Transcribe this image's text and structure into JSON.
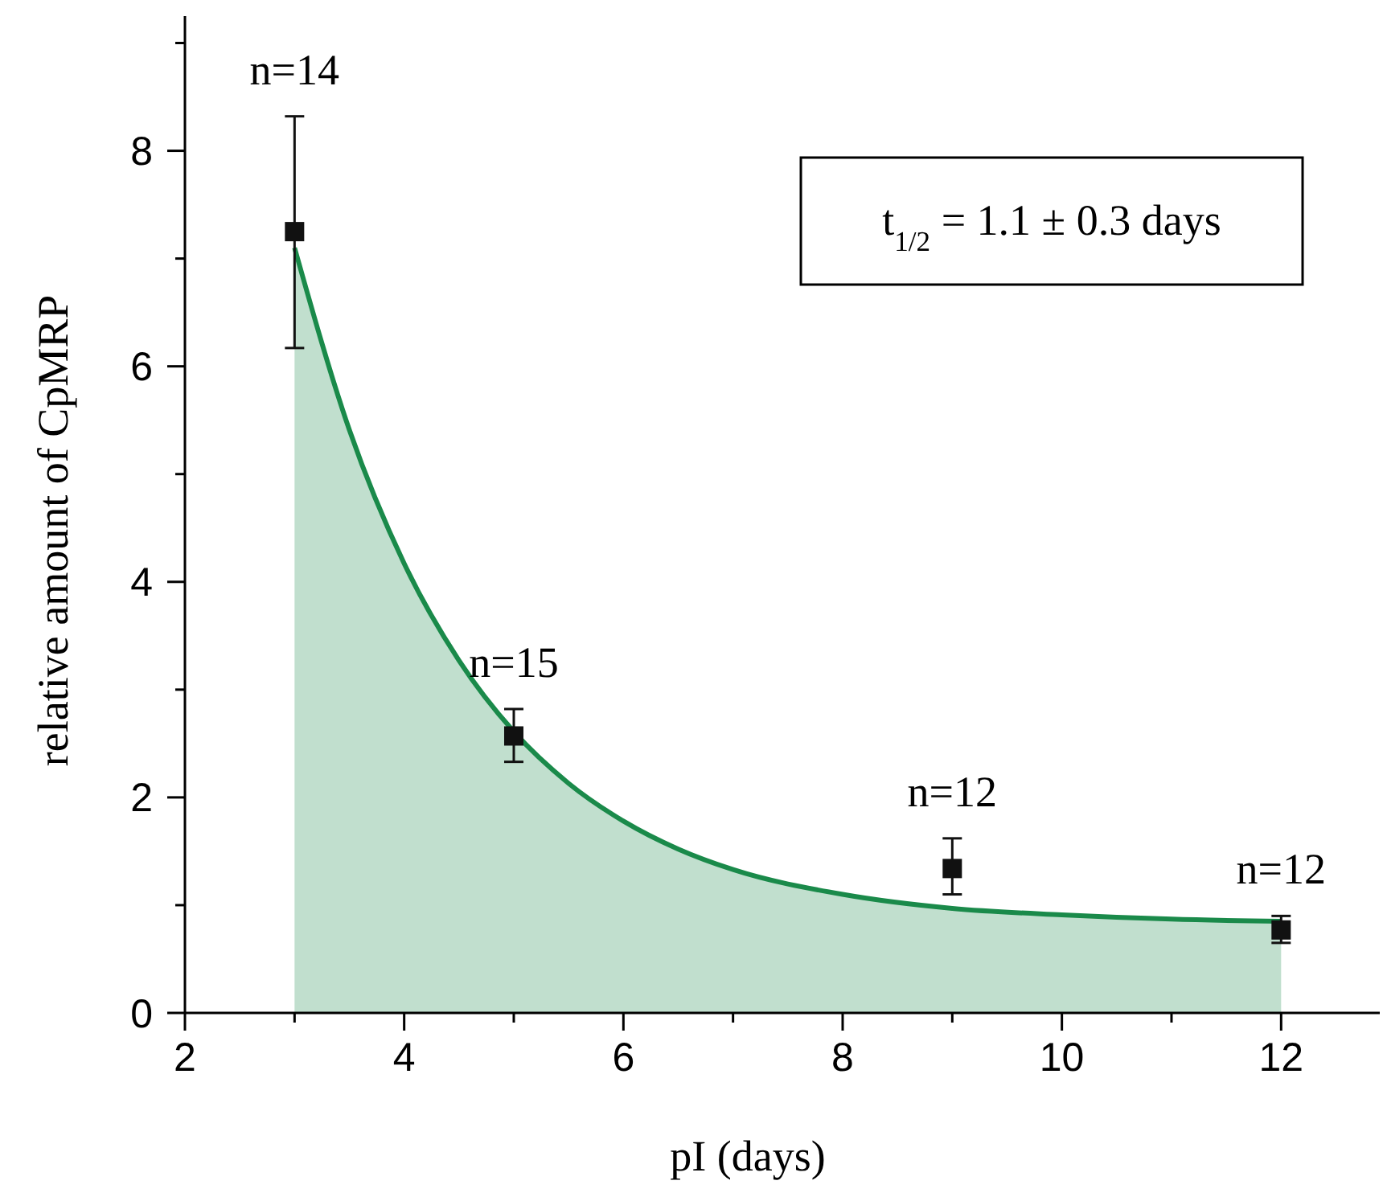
{
  "chart_data": {
    "type": "scatter",
    "xlabel": "pI (days)",
    "ylabel": "relative amount of CpMRP",
    "xlim": [
      2,
      12.9
    ],
    "ylim": [
      0,
      9.25
    ],
    "xticks": [
      2,
      {
        "value": 3,
        "label": null
      },
      4,
      {
        "value": 5,
        "label": null
      },
      6,
      {
        "value": 7,
        "label": null
      },
      8,
      {
        "value": 9,
        "label": null
      },
      10,
      {
        "value": 11,
        "label": null
      },
      12
    ],
    "yticks": [
      0,
      {
        "value": 1,
        "label": null
      },
      2,
      {
        "value": 3,
        "label": null
      },
      4,
      {
        "value": 5,
        "label": null
      },
      6,
      {
        "value": 7,
        "label": null
      },
      8,
      {
        "value": 9,
        "label": null
      }
    ],
    "grid": false,
    "series": [
      {
        "type": "area",
        "color": "#1a8a4a",
        "x": [
          3,
          3.5,
          4,
          4.5,
          5,
          5.5,
          6,
          6.5,
          7,
          8,
          9,
          10,
          11,
          12
        ],
        "values": [
          7.1,
          5.41,
          4.17,
          3.27,
          2.61,
          2.13,
          1.78,
          1.52,
          1.33,
          1.1,
          0.97,
          0.91,
          0.87,
          0.85
        ]
      },
      {
        "marker": "square",
        "color": "#111111",
        "x": [
          3,
          5,
          9,
          12
        ],
        "values": [
          7.25,
          2.57,
          1.34,
          0.77
        ],
        "errors": [
          [
            6.17,
            8.32
          ],
          [
            2.33,
            2.82
          ],
          [
            1.1,
            1.62
          ],
          [
            0.65,
            0.9
          ]
        ]
      }
    ],
    "annotations": [
      {
        "text": "n=14",
        "x": 3,
        "y": 8.32
      },
      {
        "text": "n=15",
        "x": 5,
        "y": 2.82
      },
      {
        "text": "n=12",
        "x": 9,
        "y": 1.62
      },
      {
        "text": "n=12",
        "x": 12,
        "y": 0.9
      },
      "t$_{1/2}$ = 1.1 ± 0.3 days"
    ]
  }
}
